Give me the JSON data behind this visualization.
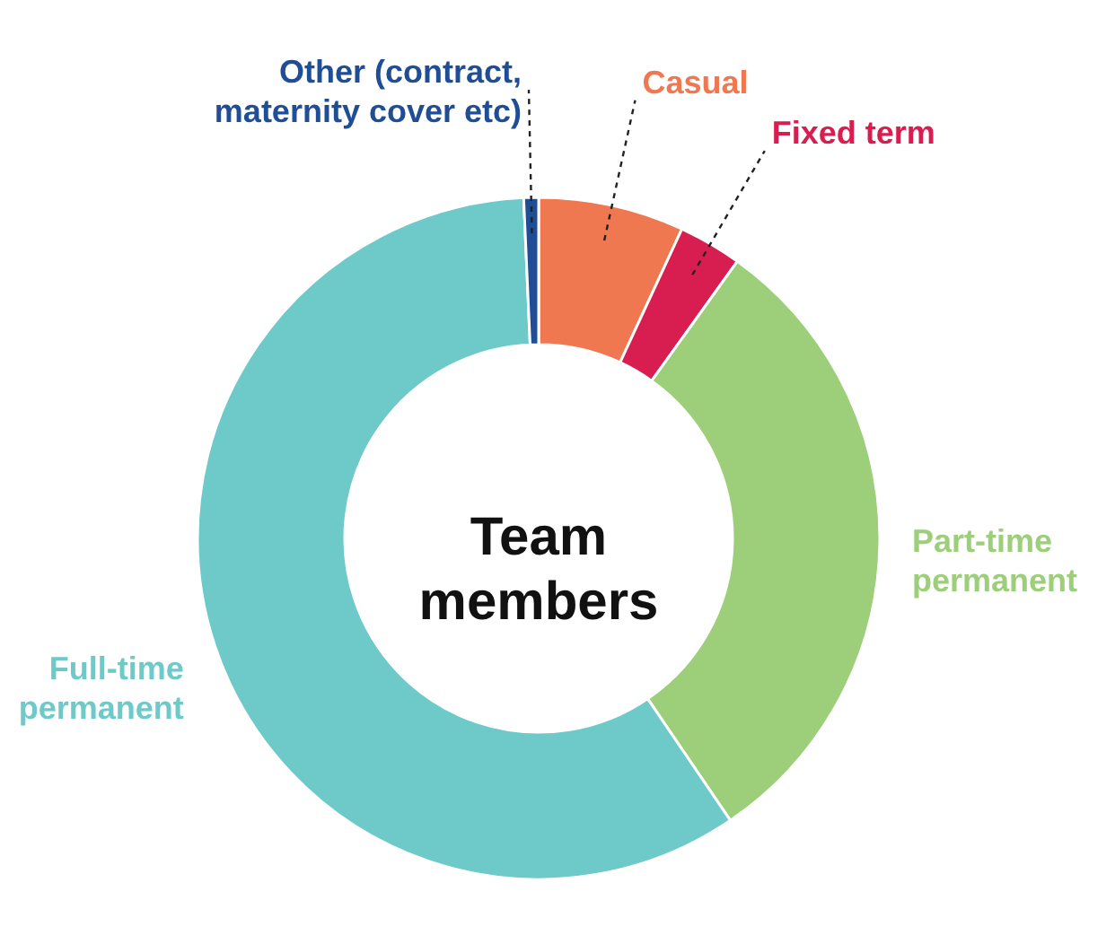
{
  "chart_data": {
    "type": "donut",
    "categories": [
      "Casual",
      "Fixed term",
      "Part-time permanent",
      "Full-time permanent",
      "Other (contract, maternity cover etc)"
    ],
    "values": [
      6.9,
      3.0,
      30.6,
      58.8,
      0.7
    ],
    "colors": [
      "#f07850",
      "#d81e50",
      "#9dce7a",
      "#6ecac8",
      "#1f4e96"
    ],
    "annotations": [
      "Team members"
    ]
  }
}
